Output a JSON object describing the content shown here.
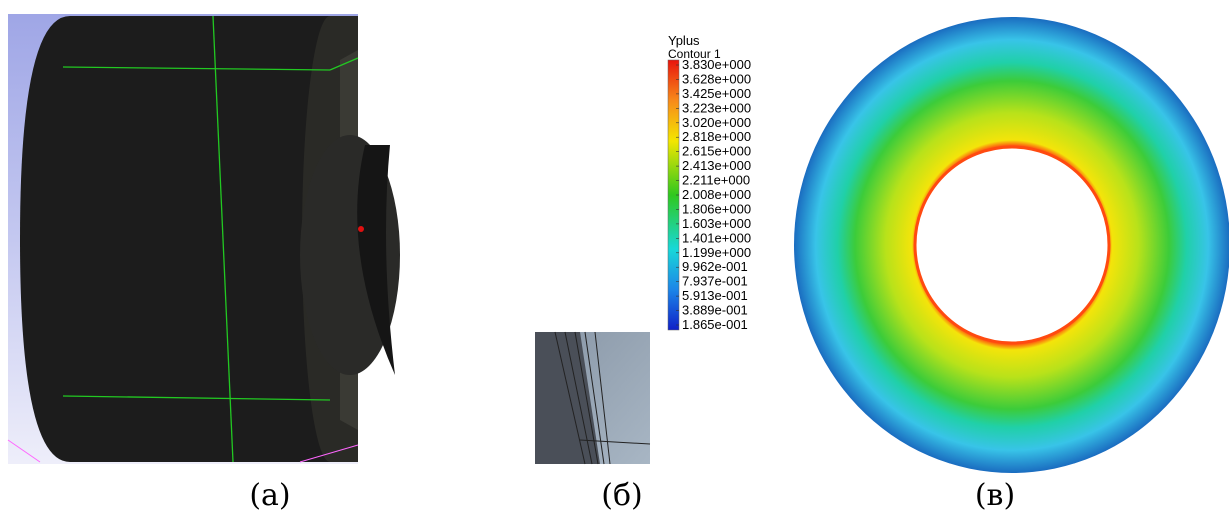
{
  "legend": {
    "title": "Yplus",
    "subtitle": "Contour 1",
    "labels": [
      "3.830e+000",
      "3.628e+000",
      "3.425e+000",
      "3.223e+000",
      "3.020e+000",
      "2.818e+000",
      "2.615e+000",
      "2.413e+000",
      "2.211e+000",
      "2.008e+000",
      "1.806e+000",
      "1.603e+000",
      "1.401e+000",
      "1.199e+000",
      "9.962e-001",
      "7.937e-001",
      "5.913e-001",
      "3.889e-001",
      "1.865e-001"
    ]
  },
  "captions": [
    "(а)",
    "(б)",
    "(в)"
  ]
}
